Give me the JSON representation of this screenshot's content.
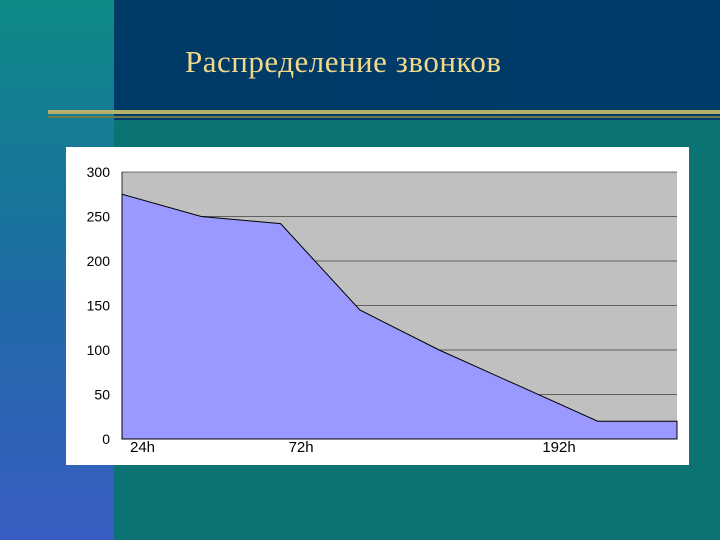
{
  "slide": {
    "title": "Распределение звонков"
  },
  "colors": {
    "plot_bg": "#c0c0c0",
    "area_fill": "#9999ff",
    "title": "#f2d98a",
    "rule": "#b7b06a"
  },
  "chart_data": {
    "type": "area",
    "title": "",
    "xlabel": "",
    "ylabel": "",
    "ylim": [
      0,
      300
    ],
    "yticks": [
      0,
      50,
      100,
      150,
      200,
      250,
      300
    ],
    "x": [
      0,
      1,
      2,
      3,
      4,
      5,
      6,
      7
    ],
    "x_tick_labels": [
      {
        "x": 0,
        "label": "24h"
      },
      {
        "x": 2,
        "label": "72h"
      },
      {
        "x": 6,
        "label": "192h"
      }
    ],
    "series": [
      {
        "values": [
          275,
          250,
          242,
          145,
          100,
          60,
          20,
          20
        ]
      }
    ],
    "grid": true,
    "legend": "none"
  }
}
